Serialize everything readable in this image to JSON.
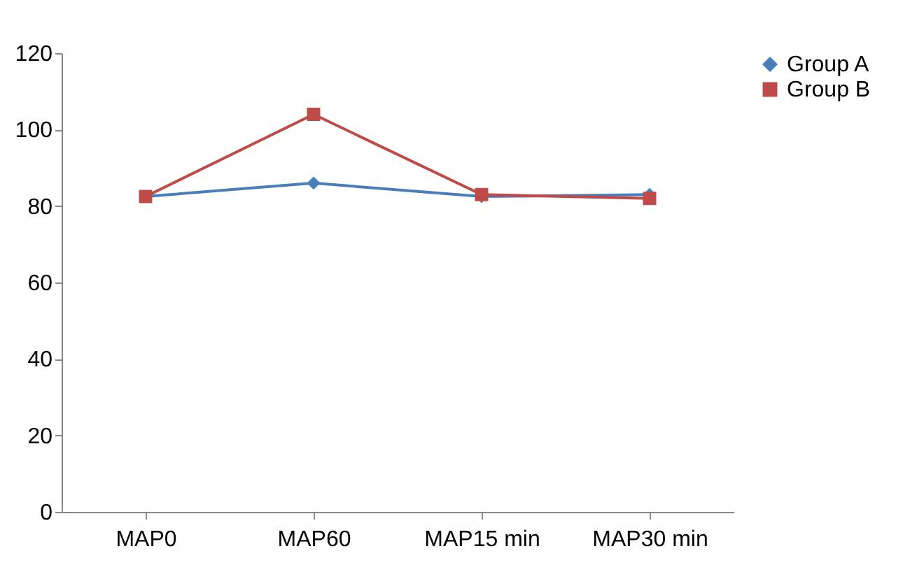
{
  "chart_data": {
    "type": "line",
    "categories": [
      "MAP0",
      "MAP60",
      "MAP15 min",
      "MAP30 min"
    ],
    "series": [
      {
        "name": "Group A",
        "color": "#4a7ebb",
        "marker": "diamond",
        "values": [
          82.5,
          86,
          82.5,
          83
        ]
      },
      {
        "name": "Group B",
        "color": "#be4b48",
        "marker": "square",
        "values": [
          82.5,
          104,
          83,
          82
        ]
      }
    ],
    "ylim": [
      0,
      120
    ],
    "yticks": [
      0,
      20,
      40,
      60,
      80,
      100,
      120
    ],
    "grid": false,
    "legend": "right",
    "line_style": "solid"
  }
}
